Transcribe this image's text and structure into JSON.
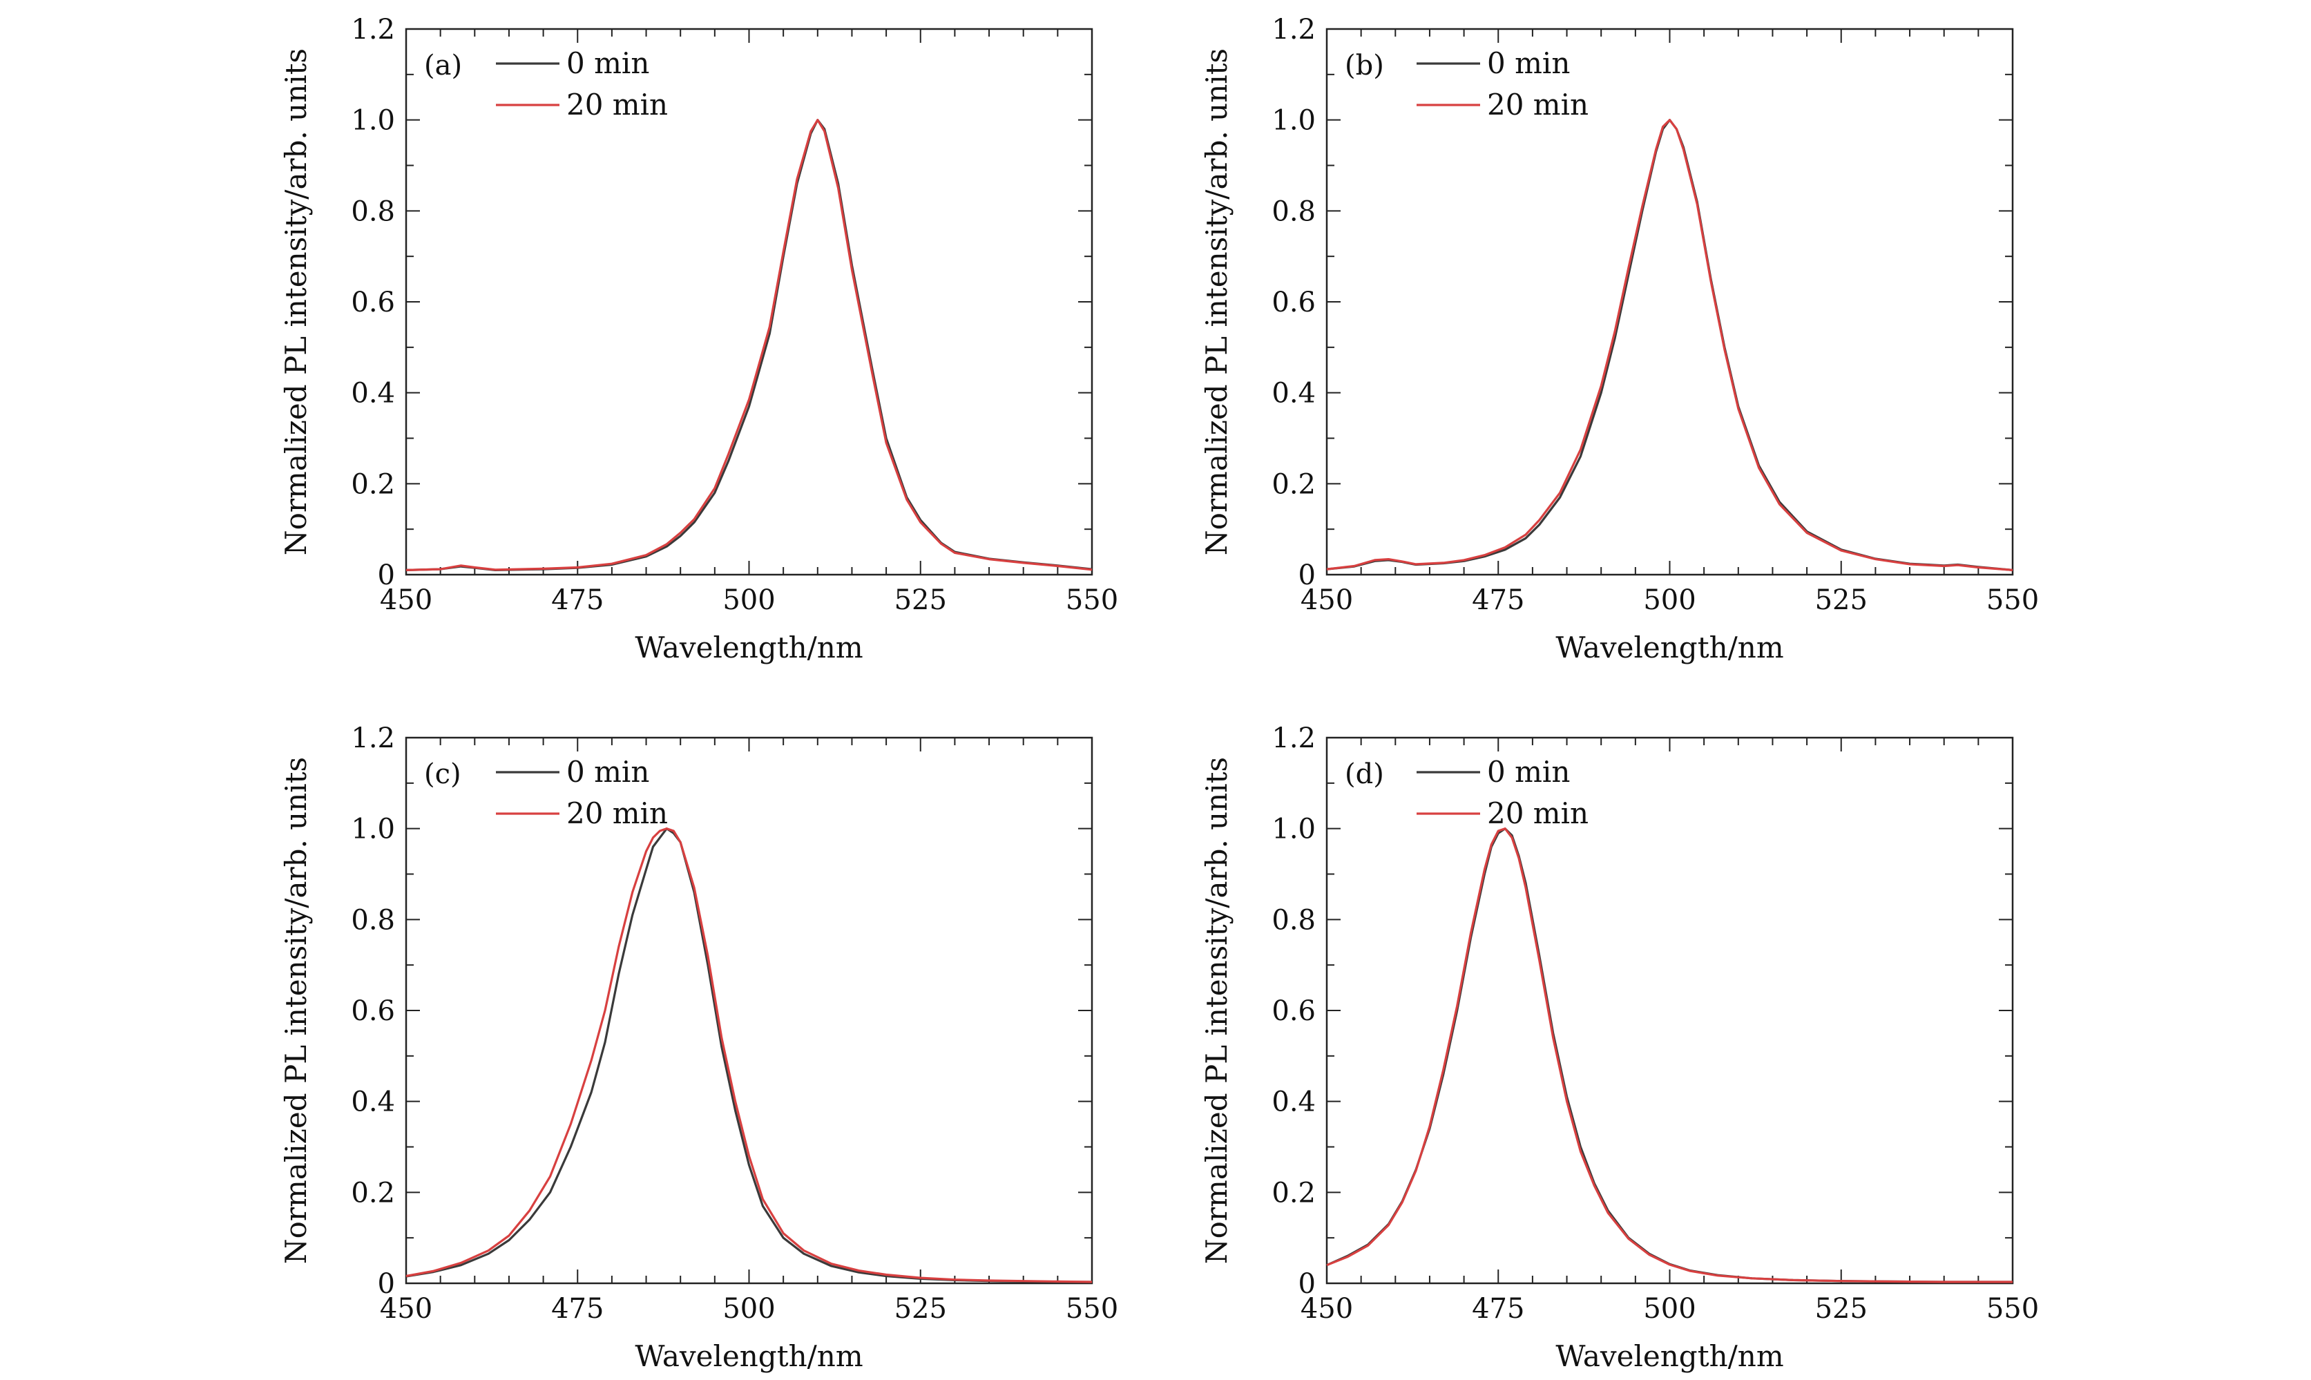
{
  "chart_data": [
    {
      "type": "line",
      "panel_label": "(a)",
      "xlabel": "Wavelength/nm",
      "ylabel": "Normalized PL intensity/arb. units",
      "xlim": [
        450,
        550
      ],
      "ylim": [
        0,
        1.2
      ],
      "xticks": [
        450,
        475,
        500,
        525,
        550
      ],
      "yticks": [
        0,
        0.2,
        0.4,
        0.6,
        0.8,
        1.0,
        1.2
      ],
      "ytick_labels": [
        "0",
        "0.2",
        "0.4",
        "0.6",
        "0.8",
        "1.0",
        "1.2"
      ],
      "legend_position": "top-left",
      "grid": false,
      "series": [
        {
          "name": "0 min",
          "color": "#3a3a3a",
          "x": [
            450,
            455,
            458,
            460,
            463,
            470,
            475,
            480,
            485,
            488,
            490,
            492,
            495,
            497,
            500,
            503,
            505,
            507,
            509,
            510,
            511,
            513,
            515,
            518,
            520,
            523,
            525,
            528,
            530,
            535,
            540,
            545,
            550
          ],
          "y": [
            0.01,
            0.012,
            0.018,
            0.015,
            0.01,
            0.012,
            0.015,
            0.022,
            0.04,
            0.062,
            0.085,
            0.115,
            0.18,
            0.25,
            0.37,
            0.53,
            0.7,
            0.86,
            0.97,
            1.0,
            0.98,
            0.86,
            0.68,
            0.45,
            0.3,
            0.17,
            0.12,
            0.07,
            0.05,
            0.035,
            0.027,
            0.02,
            0.012
          ]
        },
        {
          "name": "20 min",
          "color": "#d84040",
          "x": [
            450,
            455,
            458,
            460,
            463,
            470,
            475,
            480,
            485,
            488,
            490,
            492,
            495,
            497,
            500,
            503,
            505,
            507,
            509,
            510,
            511,
            513,
            515,
            518,
            520,
            523,
            525,
            528,
            530,
            535,
            540,
            545,
            550
          ],
          "y": [
            0.01,
            0.012,
            0.02,
            0.016,
            0.011,
            0.013,
            0.016,
            0.024,
            0.043,
            0.067,
            0.092,
            0.122,
            0.19,
            0.265,
            0.385,
            0.545,
            0.71,
            0.87,
            0.975,
            1.0,
            0.975,
            0.85,
            0.67,
            0.44,
            0.29,
            0.165,
            0.115,
            0.068,
            0.048,
            0.034,
            0.026,
            0.019,
            0.011
          ]
        }
      ]
    },
    {
      "type": "line",
      "panel_label": "(b)",
      "xlabel": "Wavelength/nm",
      "ylabel": "Normalized PL intensity/arb. units",
      "xlim": [
        450,
        550
      ],
      "ylim": [
        0,
        1.2
      ],
      "xticks": [
        450,
        475,
        500,
        525,
        550
      ],
      "yticks": [
        0,
        0.2,
        0.4,
        0.6,
        0.8,
        1.0,
        1.2
      ],
      "ytick_labels": [
        "0",
        "0.2",
        "0.4",
        "0.6",
        "0.8",
        "1.0",
        "1.2"
      ],
      "legend_position": "top-left",
      "grid": false,
      "series": [
        {
          "name": "0 min",
          "color": "#3a3a3a",
          "x": [
            450,
            454,
            457,
            459,
            461,
            463,
            467,
            470,
            473,
            476,
            479,
            481,
            484,
            487,
            490,
            492,
            494,
            496,
            498,
            499,
            500,
            501,
            502,
            504,
            506,
            508,
            510,
            513,
            516,
            520,
            525,
            530,
            535,
            540,
            542,
            545,
            550
          ],
          "y": [
            0.012,
            0.018,
            0.03,
            0.032,
            0.028,
            0.022,
            0.025,
            0.03,
            0.04,
            0.055,
            0.08,
            0.11,
            0.17,
            0.26,
            0.4,
            0.52,
            0.66,
            0.8,
            0.93,
            0.98,
            1.0,
            0.98,
            0.94,
            0.82,
            0.65,
            0.5,
            0.37,
            0.24,
            0.16,
            0.095,
            0.055,
            0.035,
            0.024,
            0.02,
            0.022,
            0.017,
            0.01
          ]
        },
        {
          "name": "20 min",
          "color": "#d84040",
          "x": [
            450,
            454,
            457,
            459,
            461,
            463,
            467,
            470,
            473,
            476,
            479,
            481,
            484,
            487,
            490,
            492,
            494,
            496,
            498,
            499,
            500,
            501,
            502,
            504,
            506,
            508,
            510,
            513,
            516,
            520,
            525,
            530,
            535,
            540,
            542,
            545,
            550
          ],
          "y": [
            0.012,
            0.019,
            0.032,
            0.034,
            0.029,
            0.023,
            0.026,
            0.032,
            0.043,
            0.06,
            0.088,
            0.12,
            0.18,
            0.275,
            0.415,
            0.535,
            0.675,
            0.81,
            0.935,
            0.985,
            1.0,
            0.98,
            0.935,
            0.815,
            0.645,
            0.495,
            0.365,
            0.235,
            0.155,
            0.092,
            0.053,
            0.034,
            0.023,
            0.019,
            0.021,
            0.016,
            0.01
          ]
        }
      ]
    },
    {
      "type": "line",
      "panel_label": "(c)",
      "xlabel": "Wavelength/nm",
      "ylabel": "Normalized PL intensity/arb. units",
      "xlim": [
        450,
        550
      ],
      "ylim": [
        0,
        1.2
      ],
      "xticks": [
        450,
        475,
        500,
        525,
        550
      ],
      "yticks": [
        0,
        0.2,
        0.4,
        0.6,
        0.8,
        1.0,
        1.2
      ],
      "ytick_labels": [
        "0",
        "0.2",
        "0.4",
        "0.6",
        "0.8",
        "1.0",
        "1.2"
      ],
      "legend_position": "top-left",
      "grid": false,
      "series": [
        {
          "name": "0 min",
          "color": "#3a3a3a",
          "x": [
            450,
            454,
            458,
            462,
            465,
            468,
            471,
            474,
            477,
            479,
            481,
            483,
            485,
            486,
            487,
            488,
            489,
            490,
            492,
            494,
            496,
            498,
            500,
            502,
            505,
            508,
            512,
            516,
            520,
            525,
            530,
            535,
            540,
            545,
            550
          ],
          "y": [
            0.015,
            0.025,
            0.04,
            0.065,
            0.095,
            0.14,
            0.2,
            0.3,
            0.42,
            0.53,
            0.68,
            0.81,
            0.91,
            0.96,
            0.98,
            1.0,
            0.99,
            0.97,
            0.86,
            0.7,
            0.52,
            0.38,
            0.26,
            0.17,
            0.1,
            0.065,
            0.038,
            0.024,
            0.016,
            0.01,
            0.007,
            0.005,
            0.004,
            0.003,
            0.003
          ]
        },
        {
          "name": "20 min",
          "color": "#d84040",
          "x": [
            450,
            454,
            458,
            462,
            465,
            468,
            471,
            474,
            477,
            479,
            481,
            483,
            485,
            486,
            487,
            488,
            489,
            490,
            492,
            494,
            496,
            498,
            500,
            502,
            505,
            508,
            512,
            516,
            520,
            525,
            530,
            535,
            540,
            545,
            550
          ],
          "y": [
            0.016,
            0.027,
            0.045,
            0.072,
            0.105,
            0.16,
            0.235,
            0.35,
            0.49,
            0.6,
            0.74,
            0.86,
            0.95,
            0.98,
            0.995,
            1.0,
            0.995,
            0.97,
            0.87,
            0.72,
            0.54,
            0.4,
            0.28,
            0.185,
            0.11,
            0.072,
            0.043,
            0.028,
            0.019,
            0.012,
            0.008,
            0.006,
            0.005,
            0.004,
            0.003
          ]
        }
      ]
    },
    {
      "type": "line",
      "panel_label": "(d)",
      "xlabel": "Wavelength/nm",
      "ylabel": "Normalized PL intensity/arb. units",
      "xlim": [
        450,
        550
      ],
      "ylim": [
        0,
        1.2
      ],
      "xticks": [
        450,
        475,
        500,
        525,
        550
      ],
      "yticks": [
        0,
        0.2,
        0.4,
        0.6,
        0.8,
        1.0,
        1.2
      ],
      "ytick_labels": [
        "0",
        "0.2",
        "0.4",
        "0.6",
        "0.8",
        "1.0",
        "1.2"
      ],
      "legend_position": "top-left",
      "grid": false,
      "series": [
        {
          "name": "0 min",
          "color": "#3a3a3a",
          "x": [
            450,
            453,
            456,
            459,
            461,
            463,
            465,
            467,
            469,
            471,
            473,
            474,
            475,
            476,
            477,
            478,
            479,
            481,
            483,
            485,
            487,
            489,
            491,
            494,
            497,
            500,
            503,
            507,
            512,
            518,
            525,
            532,
            540,
            550
          ],
          "y": [
            0.04,
            0.06,
            0.085,
            0.13,
            0.18,
            0.25,
            0.34,
            0.46,
            0.6,
            0.76,
            0.9,
            0.96,
            0.99,
            1.0,
            0.985,
            0.94,
            0.88,
            0.72,
            0.55,
            0.41,
            0.3,
            0.22,
            0.16,
            0.1,
            0.065,
            0.042,
            0.028,
            0.018,
            0.011,
            0.007,
            0.005,
            0.004,
            0.003,
            0.003
          ]
        },
        {
          "name": "20 min",
          "color": "#d84040",
          "x": [
            450,
            453,
            456,
            459,
            461,
            463,
            465,
            467,
            469,
            471,
            473,
            474,
            475,
            476,
            477,
            478,
            479,
            481,
            483,
            485,
            487,
            489,
            491,
            494,
            497,
            500,
            503,
            507,
            512,
            518,
            525,
            532,
            540,
            550
          ],
          "y": [
            0.04,
            0.058,
            0.083,
            0.128,
            0.178,
            0.248,
            0.345,
            0.47,
            0.61,
            0.77,
            0.91,
            0.965,
            0.995,
            1.0,
            0.98,
            0.935,
            0.87,
            0.71,
            0.54,
            0.4,
            0.29,
            0.215,
            0.155,
            0.098,
            0.063,
            0.041,
            0.027,
            0.017,
            0.011,
            0.007,
            0.005,
            0.004,
            0.003,
            0.003
          ]
        }
      ]
    }
  ]
}
